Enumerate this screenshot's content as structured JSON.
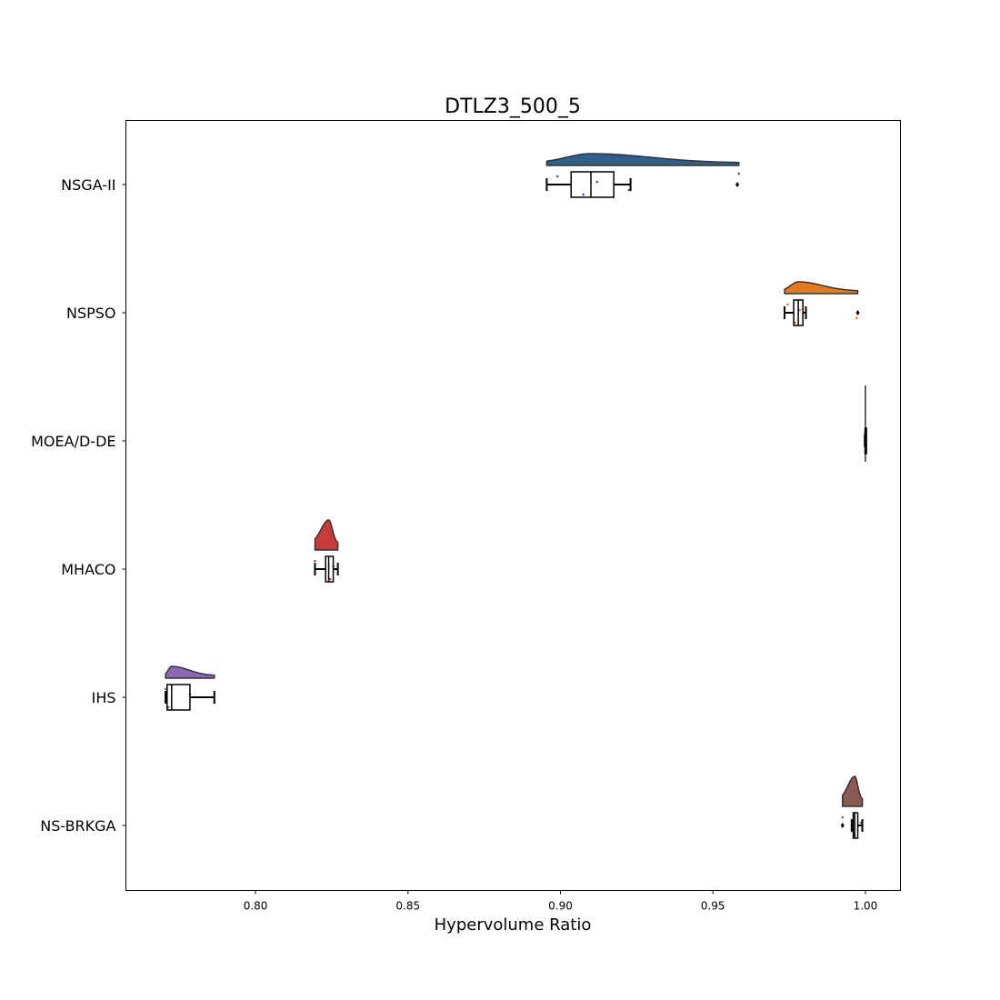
{
  "chart_data": {
    "type": "raincloud",
    "orientation": "horizontal",
    "title": "DTLZ3_500_5",
    "xlabel": "Hypervolume Ratio",
    "ylabel": "",
    "xlim": [
      0.7575,
      1.0115
    ],
    "xticks": [
      0.8,
      0.85,
      0.9,
      0.95,
      1.0
    ],
    "xtick_labels": [
      "0.80",
      "0.85",
      "0.90",
      "0.95",
      "1.00"
    ],
    "grid": false,
    "series": [
      {
        "name": "NSGA-II",
        "color": "#2f5f8a",
        "box": {
          "whisker_low": 0.8955,
          "q1": 0.9035,
          "median": 0.91,
          "q3": 0.9175,
          "whisker_high": 0.923
        },
        "outliers": [
          0.958
        ],
        "points": [
          0.899,
          0.9075,
          0.912,
          0.9225,
          0.9585
        ],
        "violin_range": [
          0.8955,
          0.9585
        ],
        "violin_peak": 0.91,
        "violin_height": "short"
      },
      {
        "name": "NSPSO",
        "color": "#e07b24",
        "box": {
          "whisker_low": 0.9735,
          "q1": 0.9765,
          "median": 0.978,
          "q3": 0.9795,
          "whisker_high": 0.9805
        },
        "outliers": [
          0.9975
        ],
        "points": [
          0.9745,
          0.977,
          0.9785,
          0.9972
        ],
        "violin_range": [
          0.9735,
          0.9975
        ],
        "violin_peak": 0.978,
        "violin_height": "short"
      },
      {
        "name": "MOEA/D-DE",
        "color": "#2ca02c",
        "box": {
          "whisker_low": 0.9998,
          "q1": 0.9999,
          "median": 1.0,
          "q3": 1.0,
          "whisker_high": 1.0
        },
        "outliers": [],
        "points": [
          0.9999,
          1.0
        ],
        "violin_range": [
          0.9998,
          1.0
        ],
        "violin_peak": 1.0,
        "violin_height": "line"
      },
      {
        "name": "MHACO",
        "color": "#c83b3b",
        "box": {
          "whisker_low": 0.8195,
          "q1": 0.823,
          "median": 0.824,
          "q3": 0.8255,
          "whisker_high": 0.827
        },
        "outliers": [],
        "points": [
          0.8195,
          0.8245,
          0.8255
        ],
        "violin_range": [
          0.8195,
          0.827
        ],
        "violin_peak": 0.824,
        "violin_height": "tall"
      },
      {
        "name": "IHS",
        "color": "#8c68b5",
        "box": {
          "whisker_low": 0.7705,
          "q1": 0.771,
          "median": 0.7725,
          "q3": 0.7785,
          "whisker_high": 0.7865
        },
        "outliers": [],
        "points": [
          0.7705,
          0.7715,
          0.7785,
          0.7865
        ],
        "violin_range": [
          0.7705,
          0.7865
        ],
        "violin_peak": 0.7725,
        "violin_height": "short"
      },
      {
        "name": "NS-BRKGA",
        "color": "#8b5a52",
        "box": {
          "whisker_low": 0.9955,
          "q1": 0.996,
          "median": 0.9965,
          "q3": 0.9975,
          "whisker_high": 0.999
        },
        "outliers": [
          0.9925
        ],
        "points": [
          0.9925,
          0.9965,
          0.9985
        ],
        "violin_range": [
          0.9925,
          0.999
        ],
        "violin_peak": 0.9965,
        "violin_height": "tall"
      }
    ]
  }
}
